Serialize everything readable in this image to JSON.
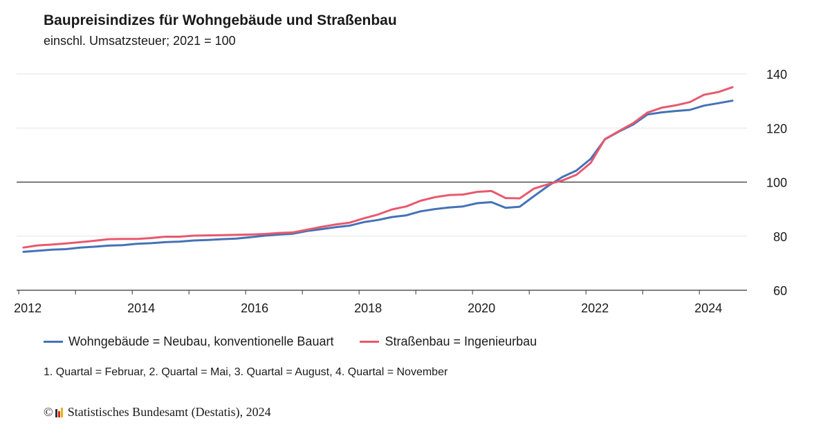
{
  "title": "Baupreisindizes für Wohngebäude und Straßenbau",
  "subtitle": "einschl. Umsatzsteuer; 2021 = 100",
  "footnote": "1. Quartal = Februar, 2. Quartal = Mai, 3. Quartal = August, 4. Quartal = November",
  "source": "Statistisches Bundesamt (Destatis), 2024",
  "copyright_symbol": "©",
  "colors": {
    "wohn": "#4472b7",
    "strasse": "#e8596e",
    "reference": "#333333",
    "grid": "#e3e3e3"
  },
  "chart_data": {
    "type": "line",
    "title": "Baupreisindizes für Wohngebäude und Straßenbau",
    "subtitle": "einschl. Umsatzsteuer; 2021 = 100",
    "xlabel": "",
    "ylabel": "",
    "ylim": [
      60,
      140
    ],
    "yticks": [
      60,
      80,
      100,
      120,
      140
    ],
    "xticks": [
      "2012",
      "2014",
      "2016",
      "2018",
      "2020",
      "2022",
      "2024"
    ],
    "reference_line": 100,
    "y_axis_position": "right",
    "legend_position": "bottom",
    "x": [
      "2012 Q1",
      "2012 Q2",
      "2012 Q3",
      "2012 Q4",
      "2013 Q1",
      "2013 Q2",
      "2013 Q3",
      "2013 Q4",
      "2014 Q1",
      "2014 Q2",
      "2014 Q3",
      "2014 Q4",
      "2015 Q1",
      "2015 Q2",
      "2015 Q3",
      "2015 Q4",
      "2016 Q1",
      "2016 Q2",
      "2016 Q3",
      "2016 Q4",
      "2017 Q1",
      "2017 Q2",
      "2017 Q3",
      "2017 Q4",
      "2018 Q1",
      "2018 Q2",
      "2018 Q3",
      "2018 Q4",
      "2019 Q1",
      "2019 Q2",
      "2019 Q3",
      "2019 Q4",
      "2020 Q1",
      "2020 Q2",
      "2020 Q3",
      "2020 Q4",
      "2021 Q1",
      "2021 Q2",
      "2021 Q3",
      "2021 Q4",
      "2022 Q1",
      "2022 Q2",
      "2022 Q3",
      "2022 Q4",
      "2023 Q1",
      "2023 Q2",
      "2023 Q3",
      "2023 Q4",
      "2024 Q1",
      "2024 Q2",
      "2024 Q3"
    ],
    "series": [
      {
        "name": "Wohngebäude = Neubau, konventionelle Bauart",
        "color": "#4472b7",
        "values": [
          74.2,
          74.6,
          75.0,
          75.2,
          75.8,
          76.1,
          76.5,
          76.7,
          77.2,
          77.4,
          77.8,
          78.0,
          78.4,
          78.6,
          78.9,
          79.1,
          79.6,
          80.2,
          80.6,
          80.9,
          81.9,
          82.6,
          83.3,
          83.9,
          85.2,
          86.0,
          87.1,
          87.7,
          89.2,
          90.0,
          90.6,
          91.0,
          92.2,
          92.6,
          90.5,
          90.9,
          94.8,
          98.6,
          101.9,
          104.3,
          108.6,
          115.8,
          118.7,
          121.3,
          125.0,
          125.8,
          126.3,
          126.7,
          128.3,
          129.2,
          130.1
        ]
      },
      {
        "name": "Straßenbau = Ingenieurbau",
        "color": "#e8596e",
        "values": [
          75.8,
          76.6,
          76.9,
          77.3,
          77.8,
          78.3,
          78.9,
          79.0,
          79.0,
          79.3,
          79.8,
          79.8,
          80.2,
          80.3,
          80.4,
          80.5,
          80.6,
          80.8,
          81.2,
          81.4,
          82.4,
          83.4,
          84.3,
          85.0,
          86.6,
          88.0,
          89.9,
          91.0,
          93.1,
          94.4,
          95.2,
          95.4,
          96.4,
          96.7,
          94.1,
          94.0,
          97.6,
          99.2,
          100.6,
          102.7,
          107.1,
          115.9,
          118.9,
          121.8,
          125.7,
          127.5,
          128.4,
          129.6,
          132.3,
          133.3,
          135.1
        ]
      }
    ]
  }
}
